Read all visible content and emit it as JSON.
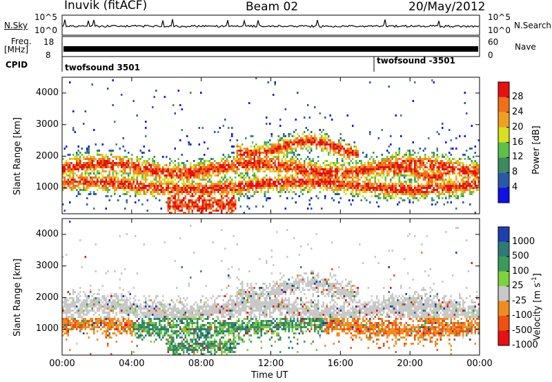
{
  "header": {
    "station": "Inuvik (fitACF)",
    "beam": "Beam 02",
    "date": "20/May/2012"
  },
  "top_panels": {
    "nsky_label": "N.Sky",
    "nsky_ticks": [
      "10^5",
      "10^0"
    ],
    "nsearch_label": "N.Search",
    "nsearch_ticks": [
      "10^5",
      "10^0"
    ],
    "freq_label_1": "Freq.",
    "freq_label_2": "[MHz]",
    "freq_ticks": [
      "18",
      "8"
    ],
    "nave_label": "Nave",
    "nave_ticks": [
      "60",
      "0"
    ],
    "cpid_label": "CPID",
    "cpid_1": "twofsound 3501",
    "cpid_2": "twofsound -3501"
  },
  "chart_data": [
    {
      "type": "heatmap",
      "ylabel": "Slant Range [km]",
      "yticks": [
        1000,
        2000,
        3000,
        4000
      ],
      "ylim": [
        180,
        4500
      ],
      "xlim": [
        "00:00",
        "24:00"
      ],
      "colorbar_label": "Power [dB]",
      "colorbar_ticks": [
        4,
        8,
        12,
        16,
        20,
        24,
        28
      ],
      "colorbar_colors": [
        "#1010e6",
        "#2858a8",
        "#3c8a60",
        "#5cc04a",
        "#d8e01e",
        "#f0a020",
        "#f07018",
        "#e81010"
      ]
    },
    {
      "type": "heatmap",
      "ylabel": "Slant Range [km]",
      "yticks": [
        1000,
        2000,
        3000,
        4000
      ],
      "ylim": [
        180,
        4500
      ],
      "xlabel": "Time UT",
      "xticks": [
        "00:00",
        "04:00",
        "08:00",
        "12:00",
        "16:00",
        "20:00",
        "00:00"
      ],
      "colorbar_label": "Velocity [m s",
      "colorbar_label_exp": "-1",
      "colorbar_label_end": "]",
      "colorbar_ticks": [
        1000,
        500,
        100,
        25,
        -25,
        -100,
        -500,
        -1000
      ],
      "colorbar_colors": [
        "#1f3fb0",
        "#2e7a7a",
        "#3a9a5a",
        "#7fd23c",
        "#c8c8c8",
        "#f08c1e",
        "#f05014",
        "#e81010"
      ]
    }
  ]
}
